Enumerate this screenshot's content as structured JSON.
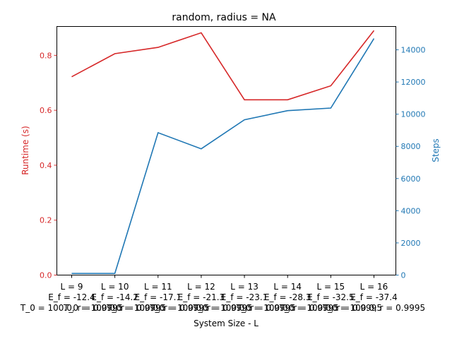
{
  "chart_data": {
    "type": "line",
    "title": "random, radius = NA",
    "xlabel": "System Size - L",
    "ylabel_left": "Runtime (s)",
    "ylabel_right": "Steps",
    "categories": [
      [
        "L = 9",
        "E_f = -12.4",
        "T_0 = 100.0, r = 0.9995"
      ],
      [
        "L = 10",
        "E_f = -14.2",
        "T_0 = 100.0, r = 0.9995"
      ],
      [
        "L = 11",
        "E_f = -17.1",
        "T_0 = 100.0, r = 0.9995"
      ],
      [
        "L = 12",
        "E_f = -21.3",
        "T_0 = 100.0, r = 0.9995"
      ],
      [
        "L = 13",
        "E_f = -23.1",
        "T_0 = 100.0, r = 0.9995"
      ],
      [
        "L = 14",
        "E_f = -28.3",
        "T_0 = 100.0, r = 0.9995"
      ],
      [
        "L = 15",
        "E_f = -32.5",
        "T_0 = 100.0, r = 0.9995"
      ],
      [
        "L = 16",
        "E_f = -37.4",
        "T_0 = 100.0, r = 0.9995"
      ]
    ],
    "series": [
      {
        "axis": "left",
        "color": "#d62728",
        "values": [
          0.722,
          0.806,
          0.829,
          0.882,
          0.638,
          0.638,
          0.689,
          0.89
        ]
      },
      {
        "axis": "right",
        "color": "#1f77b4",
        "values": [
          100,
          100,
          8850,
          7850,
          9650,
          10220,
          10380,
          14700
        ]
      }
    ],
    "ylim_left": [
      0,
      0.905
    ],
    "ylim_right": [
      0,
      15450
    ],
    "yticks_left": [
      "0.0",
      "0.2",
      "0.4",
      "0.6",
      "0.8"
    ],
    "yticks_right": [
      "0",
      "2000",
      "4000",
      "6000",
      "8000",
      "10000",
      "12000",
      "14000"
    ],
    "grid": false
  }
}
